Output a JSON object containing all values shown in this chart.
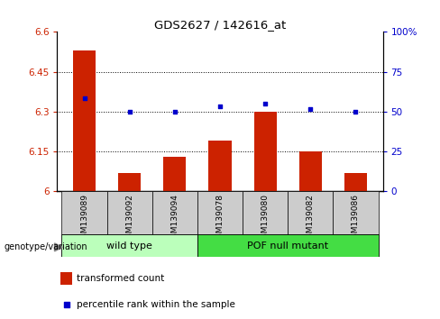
{
  "title": "GDS2627 / 142616_at",
  "categories": [
    "GSM139089",
    "GSM139092",
    "GSM139094",
    "GSM139078",
    "GSM139080",
    "GSM139082",
    "GSM139086"
  ],
  "bar_values": [
    6.53,
    6.07,
    6.13,
    6.19,
    6.3,
    6.15,
    6.07
  ],
  "dot_values": [
    6.35,
    6.3,
    6.3,
    6.32,
    6.33,
    6.31,
    6.3
  ],
  "ylim_left": [
    6.0,
    6.6
  ],
  "ylim_right": [
    0,
    100
  ],
  "yticks_left": [
    6.0,
    6.15,
    6.3,
    6.45,
    6.6
  ],
  "yticks_right": [
    0,
    25,
    50,
    75,
    100
  ],
  "ytick_labels_left": [
    "6",
    "6.15",
    "6.3",
    "6.45",
    "6.6"
  ],
  "ytick_labels_right": [
    "0",
    "25",
    "50",
    "75",
    "100%"
  ],
  "hlines": [
    6.15,
    6.3,
    6.45
  ],
  "bar_color": "#cc2200",
  "dot_color": "#0000cc",
  "group1_label": "wild type",
  "group2_label": "POF null mutant",
  "group1_indices": [
    0,
    1,
    2
  ],
  "group2_indices": [
    3,
    4,
    5,
    6
  ],
  "group1_color": "#bbffbb",
  "group2_color": "#44dd44",
  "tick_label_color_left": "#cc2200",
  "tick_label_color_right": "#0000cc",
  "bar_width": 0.5,
  "legend_bar_label": "transformed count",
  "legend_dot_label": "percentile rank within the sample",
  "genotype_label": "genotype/variation",
  "box_color": "#cccccc"
}
